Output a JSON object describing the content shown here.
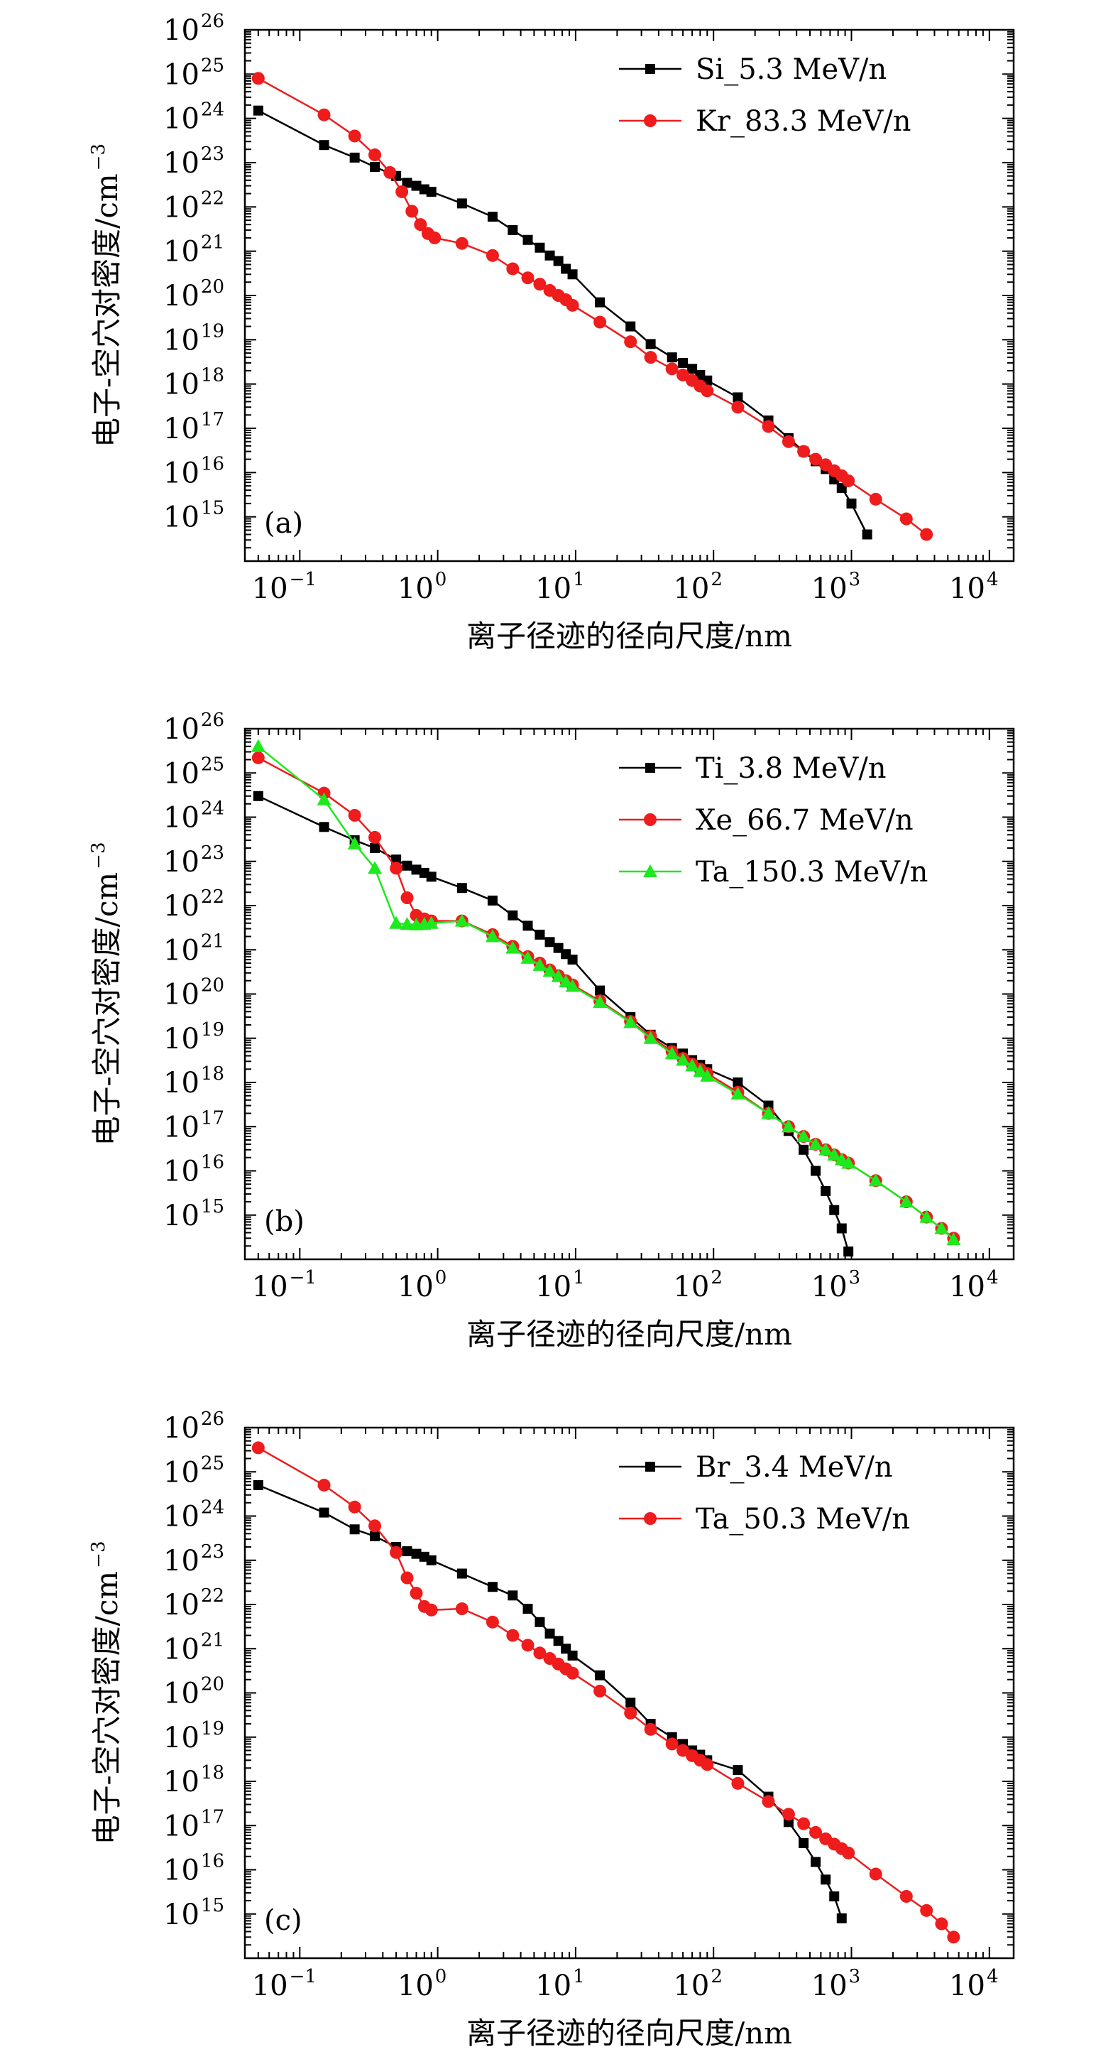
{
  "chart_data": [
    {
      "type": "line",
      "panel_label": "(a)",
      "xlabel": "离子径迹的径向尺度/nm",
      "ylabel": "电子-空穴对密度/cm",
      "ylabel_sup": "−3",
      "x_scale": "log",
      "y_scale": "log",
      "xlim": [
        0.04,
        15000
      ],
      "ylim": [
        100000000000000.0,
        1e+26
      ],
      "x_ticks": [
        {
          "base": "10",
          "exp": "−1"
        },
        {
          "base": "10",
          "exp": "0"
        },
        {
          "base": "10",
          "exp": "1"
        },
        {
          "base": "10",
          "exp": "2"
        },
        {
          "base": "10",
          "exp": "3"
        },
        {
          "base": "10",
          "exp": "4"
        }
      ],
      "y_ticks": [
        {
          "base": "10",
          "exp": "15"
        },
        {
          "base": "10",
          "exp": "16"
        },
        {
          "base": "10",
          "exp": "17"
        },
        {
          "base": "10",
          "exp": "18"
        },
        {
          "base": "10",
          "exp": "19"
        },
        {
          "base": "10",
          "exp": "20"
        },
        {
          "base": "10",
          "exp": "21"
        },
        {
          "base": "10",
          "exp": "22"
        },
        {
          "base": "10",
          "exp": "23"
        },
        {
          "base": "10",
          "exp": "24"
        },
        {
          "base": "10",
          "exp": "25"
        },
        {
          "base": "10",
          "exp": "26"
        }
      ],
      "legend_position": "top-right",
      "series": [
        {
          "name": "Si_5.3 MeV/n",
          "color": "#000000",
          "marker": "square",
          "x": [
            0.05,
            0.15,
            0.25,
            0.35,
            0.5,
            0.6,
            0.7,
            0.8,
            0.9,
            1.5,
            2.5,
            3.5,
            4.5,
            5.5,
            6.5,
            7.5,
            8.5,
            9.5,
            15,
            25,
            35,
            50,
            60,
            70,
            80,
            90,
            150,
            250,
            350,
            450,
            550,
            650,
            750,
            850,
            1000,
            1300
          ],
          "y": [
            1.5e+24,
            2.5e+23,
            1.3e+23,
            8e+22,
            5e+22,
            3.5e+22,
            3e+22,
            2.5e+22,
            2.2e+22,
            1.2e+22,
            6e+21,
            3e+21,
            1.8e+21,
            1.2e+21,
            8e+20,
            6e+20,
            4e+20,
            3e+20,
            7e+19,
            2e+19,
            8e+18,
            4e+18,
            3e+18,
            2.2e+18,
            1.6e+18,
            1.2e+18,
            5e+17,
            1.5e+17,
            6e+16,
            3e+16,
            1.8e+16,
            1.2e+16,
            7000000000000000.0,
            4500000000000000.0,
            2000000000000000.0,
            400000000000000.0
          ]
        },
        {
          "name": "Kr_83.3 MeV/n",
          "color": "#ee1c1c",
          "marker": "circle",
          "x": [
            0.05,
            0.15,
            0.25,
            0.35,
            0.45,
            0.55,
            0.65,
            0.75,
            0.85,
            0.95,
            1.5,
            2.5,
            3.5,
            4.5,
            5.5,
            6.5,
            7.5,
            8.5,
            9.5,
            15,
            25,
            35,
            50,
            60,
            70,
            80,
            90,
            150,
            250,
            350,
            450,
            550,
            650,
            750,
            850,
            950,
            1500,
            2500,
            3500
          ],
          "y": [
            8e+24,
            1.2e+24,
            4e+23,
            1.5e+23,
            6e+22,
            2.2e+22,
            8e+21,
            4e+21,
            2.5e+21,
            2e+21,
            1.5e+21,
            8e+20,
            4e+20,
            2.5e+20,
            1.8e+20,
            1.3e+20,
            1e+20,
            8e+19,
            6e+19,
            2.5e+19,
            9e+18,
            4e+18,
            2.2e+18,
            1.6e+18,
            1.2e+18,
            9e+17,
            7e+17,
            3e+17,
            1.1e+17,
            5e+16,
            3e+16,
            2e+16,
            1.5e+16,
            1.1e+16,
            8500000000000000.0,
            6500000000000000.0,
            2500000000000000.0,
            900000000000000.0,
            400000000000000.0
          ]
        }
      ]
    },
    {
      "type": "line",
      "panel_label": "(b)",
      "xlabel": "离子径迹的径向尺度/nm",
      "ylabel": "电子-空穴对密度/cm",
      "ylabel_sup": "−3",
      "x_scale": "log",
      "y_scale": "log",
      "xlim": [
        0.04,
        15000
      ],
      "ylim": [
        100000000000000.0,
        1e+26
      ],
      "x_ticks": [
        {
          "base": "10",
          "exp": "−1"
        },
        {
          "base": "10",
          "exp": "0"
        },
        {
          "base": "10",
          "exp": "1"
        },
        {
          "base": "10",
          "exp": "2"
        },
        {
          "base": "10",
          "exp": "3"
        },
        {
          "base": "10",
          "exp": "4"
        }
      ],
      "y_ticks": [
        {
          "base": "10",
          "exp": "15"
        },
        {
          "base": "10",
          "exp": "16"
        },
        {
          "base": "10",
          "exp": "17"
        },
        {
          "base": "10",
          "exp": "18"
        },
        {
          "base": "10",
          "exp": "19"
        },
        {
          "base": "10",
          "exp": "20"
        },
        {
          "base": "10",
          "exp": "21"
        },
        {
          "base": "10",
          "exp": "22"
        },
        {
          "base": "10",
          "exp": "23"
        },
        {
          "base": "10",
          "exp": "24"
        },
        {
          "base": "10",
          "exp": "25"
        },
        {
          "base": "10",
          "exp": "26"
        }
      ],
      "legend_position": "top-right",
      "series": [
        {
          "name": "Ti_3.8 MeV/n",
          "color": "#000000",
          "marker": "square",
          "x": [
            0.05,
            0.15,
            0.25,
            0.35,
            0.5,
            0.6,
            0.7,
            0.8,
            0.9,
            1.5,
            2.5,
            3.5,
            4.5,
            5.5,
            6.5,
            7.5,
            8.5,
            9.5,
            15,
            25,
            35,
            50,
            60,
            70,
            80,
            90,
            150,
            250,
            350,
            450,
            550,
            650,
            750,
            850,
            950
          ],
          "y": [
            3e+24,
            6e+23,
            3e+23,
            2e+23,
            1.1e+23,
            8e+22,
            6.5e+22,
            5.5e+22,
            4.5e+22,
            2.5e+22,
            1.3e+22,
            6e+21,
            3.5e+21,
            2.2e+21,
            1.5e+21,
            1.1e+21,
            8e+20,
            6e+20,
            1.2e+20,
            3e+19,
            1.2e+19,
            6e+18,
            4.5e+18,
            3.2e+18,
            2.5e+18,
            2e+18,
            1e+18,
            3e+17,
            8e+16,
            3e+16,
            1e+16,
            3500000000000000.0,
            1300000000000000.0,
            500000000000000.0,
            150000000000000.0
          ]
        },
        {
          "name": "Xe_66.7 MeV/n",
          "color": "#ee1c1c",
          "marker": "circle",
          "x": [
            0.05,
            0.15,
            0.25,
            0.35,
            0.5,
            0.6,
            0.7,
            0.8,
            0.9,
            1.5,
            2.5,
            3.5,
            4.5,
            5.5,
            6.5,
            7.5,
            8.5,
            9.5,
            15,
            25,
            35,
            50,
            60,
            70,
            80,
            90,
            150,
            250,
            350,
            450,
            550,
            650,
            750,
            850,
            950,
            1500,
            2500,
            3500,
            4500,
            5500
          ],
          "y": [
            2.2e+25,
            3.5e+24,
            1.1e+24,
            3.5e+23,
            7e+22,
            1.5e+22,
            6e+21,
            5e+21,
            4.5e+21,
            4.5e+21,
            2.2e+21,
            1.2e+21,
            7e+20,
            5e+20,
            3.5e+20,
            2.6e+20,
            2e+20,
            1.6e+20,
            7e+19,
            2.4e+19,
            1.1e+19,
            5e+18,
            3.5e+18,
            2.6e+18,
            2e+18,
            1.6e+18,
            6e+17,
            2e+17,
            1e+17,
            6e+16,
            4e+16,
            3e+16,
            2.3e+16,
            1.8e+16,
            1.5e+16,
            6000000000000000.0,
            2000000000000000.0,
            900000000000000.0,
            500000000000000.0,
            300000000000000.0
          ]
        },
        {
          "name": "Ta_150.3 MeV/n",
          "color": "#1ee81e",
          "marker": "triangle",
          "x": [
            0.05,
            0.15,
            0.25,
            0.35,
            0.5,
            0.6,
            0.7,
            0.8,
            0.9,
            1.5,
            2.5,
            3.5,
            4.5,
            5.5,
            6.5,
            7.5,
            8.5,
            9.5,
            15,
            25,
            35,
            50,
            60,
            70,
            80,
            90,
            150,
            250,
            350,
            450,
            550,
            650,
            750,
            850,
            950,
            1500,
            2500,
            3500,
            4500,
            5500
          ],
          "y": [
            4e+25,
            2.5e+24,
            2.5e+23,
            7e+22,
            4e+21,
            3.8e+21,
            3.7e+21,
            3.8e+21,
            4e+21,
            4.5e+21,
            2e+21,
            1.1e+21,
            6.5e+20,
            4.5e+20,
            3.3e+20,
            2.5e+20,
            1.9e+20,
            1.5e+20,
            6.5e+19,
            2.3e+19,
            1e+19,
            4.5e+18,
            3.2e+18,
            2.4e+18,
            1.8e+18,
            1.4e+18,
            5.5e+17,
            2e+17,
            1e+17,
            6e+16,
            4e+16,
            3e+16,
            2.3e+16,
            1.8e+16,
            1.5e+16,
            6000000000000000.0,
            2000000000000000.0,
            900000000000000.0,
            500000000000000.0,
            280000000000000.0
          ]
        }
      ]
    },
    {
      "type": "line",
      "panel_label": "(c)",
      "xlabel": "离子径迹的径向尺度/nm",
      "ylabel": "电子-空穴对密度/cm",
      "ylabel_sup": "−3",
      "x_scale": "log",
      "y_scale": "log",
      "xlim": [
        0.04,
        15000
      ],
      "ylim": [
        100000000000000.0,
        1e+26
      ],
      "x_ticks": [
        {
          "base": "10",
          "exp": "−1"
        },
        {
          "base": "10",
          "exp": "0"
        },
        {
          "base": "10",
          "exp": "1"
        },
        {
          "base": "10",
          "exp": "2"
        },
        {
          "base": "10",
          "exp": "3"
        },
        {
          "base": "10",
          "exp": "4"
        }
      ],
      "y_ticks": [
        {
          "base": "10",
          "exp": "15"
        },
        {
          "base": "10",
          "exp": "16"
        },
        {
          "base": "10",
          "exp": "17"
        },
        {
          "base": "10",
          "exp": "18"
        },
        {
          "base": "10",
          "exp": "19"
        },
        {
          "base": "10",
          "exp": "20"
        },
        {
          "base": "10",
          "exp": "21"
        },
        {
          "base": "10",
          "exp": "22"
        },
        {
          "base": "10",
          "exp": "23"
        },
        {
          "base": "10",
          "exp": "24"
        },
        {
          "base": "10",
          "exp": "25"
        },
        {
          "base": "10",
          "exp": "26"
        }
      ],
      "legend_position": "top-right",
      "series": [
        {
          "name": "Br_3.4 MeV/n",
          "color": "#000000",
          "marker": "square",
          "x": [
            0.05,
            0.15,
            0.25,
            0.35,
            0.5,
            0.6,
            0.7,
            0.8,
            0.9,
            1.5,
            2.5,
            3.5,
            4.5,
            5.5,
            6.5,
            7.5,
            8.5,
            9.5,
            15,
            25,
            35,
            50,
            60,
            70,
            80,
            90,
            150,
            250,
            350,
            450,
            550,
            650,
            750,
            850
          ],
          "y": [
            5e+24,
            1.2e+24,
            5e+23,
            3.5e+23,
            2e+23,
            1.6e+23,
            1.4e+23,
            1.2e+23,
            1e+23,
            5e+22,
            2.5e+22,
            1.6e+22,
            8e+21,
            4e+21,
            2.2e+21,
            1.5e+21,
            1e+21,
            7e+20,
            2.5e+20,
            6e+19,
            2e+19,
            1e+19,
            7e+18,
            5e+18,
            4e+18,
            3e+18,
            1.8e+18,
            4.5e+17,
            1.2e+17,
            4e+16,
            1.5e+16,
            6000000000000000.0,
            2500000000000000.0,
            800000000000000.0
          ]
        },
        {
          "name": "Ta_50.3 MeV/n",
          "color": "#ee1c1c",
          "marker": "circle",
          "x": [
            0.05,
            0.15,
            0.25,
            0.35,
            0.5,
            0.6,
            0.7,
            0.8,
            0.9,
            1.5,
            2.5,
            3.5,
            4.5,
            5.5,
            6.5,
            7.5,
            8.5,
            9.5,
            15,
            25,
            35,
            50,
            60,
            70,
            80,
            90,
            150,
            250,
            350,
            450,
            550,
            650,
            750,
            850,
            950,
            1500,
            2500,
            3500,
            4500,
            5500
          ],
          "y": [
            3.5e+25,
            5e+24,
            1.6e+24,
            6e+23,
            1.5e+23,
            4e+22,
            1.8e+22,
            9e+21,
            7.5e+21,
            8e+21,
            4e+21,
            2e+21,
            1.2e+21,
            8e+20,
            6e+20,
            4.5e+20,
            3.5e+20,
            2.8e+20,
            1.1e+20,
            3.5e+19,
            1.5e+19,
            7e+18,
            5e+18,
            3.8e+18,
            3e+18,
            2.4e+18,
            9e+17,
            3.5e+17,
            1.8e+17,
            1.1e+17,
            7e+16,
            5e+16,
            3.8e+16,
            3e+16,
            2.4e+16,
            8000000000000000.0,
            2500000000000000.0,
            1200000000000000.0,
            600000000000000.0,
            300000000000000.0
          ]
        }
      ]
    }
  ]
}
